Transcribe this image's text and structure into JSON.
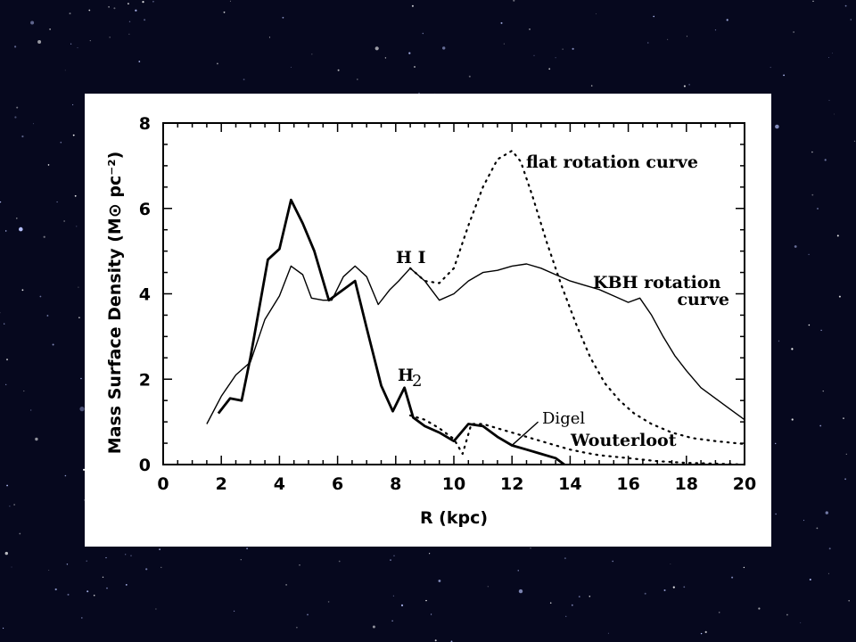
{
  "theme": {
    "background": "#06081e",
    "panel": "#ffffff",
    "ink": "#000000"
  },
  "chart_data": {
    "type": "line",
    "title": "",
    "xlabel": "R (kpc)",
    "ylabel": "Mass Surface Density (M⊙ pc⁻²)",
    "xlim": [
      0,
      20
    ],
    "ylim": [
      0,
      8
    ],
    "x_ticks": [
      "0",
      "2",
      "4",
      "6",
      "8",
      "10",
      "12",
      "14",
      "16",
      "18",
      "20"
    ],
    "y_ticks": [
      "0",
      "2",
      "4",
      "6",
      "8"
    ],
    "grid": false,
    "legend": "none",
    "annotations": {
      "hi": "H I",
      "h2": "H",
      "h2_sub": "2",
      "flat": "flat rotation curve",
      "kbh_1": "KBH rotation",
      "kbh_2": "curve",
      "digel": "Digel",
      "wouterloot": "Wouterloot"
    },
    "series": [
      {
        "name": "H I (KBH rotation curve)",
        "style": "thin-solid",
        "points": [
          [
            1.5,
            0.95
          ],
          [
            2.0,
            1.6
          ],
          [
            2.5,
            2.1
          ],
          [
            3.0,
            2.4
          ],
          [
            3.5,
            3.4
          ],
          [
            4.0,
            3.95
          ],
          [
            4.4,
            4.65
          ],
          [
            4.8,
            4.45
          ],
          [
            5.1,
            3.9
          ],
          [
            5.5,
            3.85
          ],
          [
            5.8,
            3.85
          ],
          [
            6.2,
            4.4
          ],
          [
            6.6,
            4.65
          ],
          [
            7.0,
            4.4
          ],
          [
            7.4,
            3.75
          ],
          [
            7.8,
            4.1
          ],
          [
            8.1,
            4.3
          ],
          [
            8.5,
            4.6
          ],
          [
            9.0,
            4.3
          ],
          [
            9.5,
            3.85
          ],
          [
            10.0,
            4.0
          ],
          [
            10.5,
            4.3
          ],
          [
            11.0,
            4.5
          ],
          [
            11.5,
            4.55
          ],
          [
            12.0,
            4.65
          ],
          [
            12.5,
            4.7
          ],
          [
            13.0,
            4.6
          ],
          [
            13.5,
            4.45
          ],
          [
            14.0,
            4.3
          ],
          [
            14.5,
            4.2
          ],
          [
            15.0,
            4.1
          ],
          [
            15.5,
            3.95
          ],
          [
            16.0,
            3.8
          ],
          [
            16.4,
            3.9
          ],
          [
            16.8,
            3.5
          ],
          [
            17.2,
            3.0
          ],
          [
            17.6,
            2.55
          ],
          [
            18.0,
            2.2
          ],
          [
            18.5,
            1.8
          ],
          [
            19.0,
            1.55
          ],
          [
            19.5,
            1.3
          ],
          [
            20.0,
            1.05
          ]
        ]
      },
      {
        "name": "H I (flat rotation curve)",
        "style": "dotted",
        "points": [
          [
            8.5,
            4.6
          ],
          [
            9.0,
            4.3
          ],
          [
            9.5,
            4.25
          ],
          [
            10.0,
            4.6
          ],
          [
            10.5,
            5.6
          ],
          [
            11.0,
            6.5
          ],
          [
            11.5,
            7.15
          ],
          [
            12.0,
            7.35
          ],
          [
            12.3,
            7.1
          ],
          [
            12.7,
            6.3
          ],
          [
            13.2,
            5.2
          ],
          [
            13.7,
            4.2
          ],
          [
            14.2,
            3.3
          ],
          [
            14.7,
            2.5
          ],
          [
            15.2,
            1.9
          ],
          [
            15.7,
            1.5
          ],
          [
            16.2,
            1.2
          ],
          [
            16.8,
            0.95
          ],
          [
            17.5,
            0.75
          ],
          [
            18.2,
            0.62
          ],
          [
            19.0,
            0.55
          ],
          [
            20.0,
            0.48
          ]
        ]
      },
      {
        "name": "H2",
        "style": "thick-solid",
        "points": [
          [
            1.9,
            1.2
          ],
          [
            2.3,
            1.55
          ],
          [
            2.7,
            1.5
          ],
          [
            3.0,
            2.5
          ],
          [
            3.6,
            4.8
          ],
          [
            4.0,
            5.05
          ],
          [
            4.4,
            6.2
          ],
          [
            4.8,
            5.65
          ],
          [
            5.2,
            5.0
          ],
          [
            5.7,
            3.85
          ],
          [
            6.2,
            4.1
          ],
          [
            6.6,
            4.3
          ],
          [
            7.0,
            3.2
          ],
          [
            7.5,
            1.85
          ],
          [
            7.9,
            1.25
          ],
          [
            8.3,
            1.8
          ],
          [
            8.6,
            1.1
          ],
          [
            9.0,
            0.9
          ],
          [
            9.5,
            0.75
          ],
          [
            10.0,
            0.55
          ],
          [
            10.5,
            0.95
          ],
          [
            11.0,
            0.9
          ],
          [
            11.5,
            0.65
          ],
          [
            12.0,
            0.45
          ],
          [
            12.5,
            0.35
          ],
          [
            13.0,
            0.25
          ],
          [
            13.5,
            0.15
          ],
          [
            13.8,
            0.0
          ]
        ]
      },
      {
        "name": "H2 (Wouterloot)",
        "style": "dotted",
        "points": [
          [
            8.5,
            1.15
          ],
          [
            9.0,
            1.05
          ],
          [
            9.5,
            0.85
          ],
          [
            10.0,
            0.6
          ],
          [
            10.3,
            0.25
          ],
          [
            10.6,
            0.95
          ],
          [
            11.0,
            0.95
          ],
          [
            11.5,
            0.85
          ],
          [
            12.0,
            0.75
          ],
          [
            12.5,
            0.65
          ],
          [
            13.0,
            0.55
          ],
          [
            13.5,
            0.45
          ],
          [
            14.0,
            0.35
          ],
          [
            14.5,
            0.28
          ],
          [
            15.0,
            0.22
          ],
          [
            16.0,
            0.15
          ],
          [
            17.0,
            0.08
          ],
          [
            18.0,
            0.04
          ],
          [
            19.0,
            0.02
          ],
          [
            20.0,
            0.0
          ]
        ]
      }
    ]
  }
}
